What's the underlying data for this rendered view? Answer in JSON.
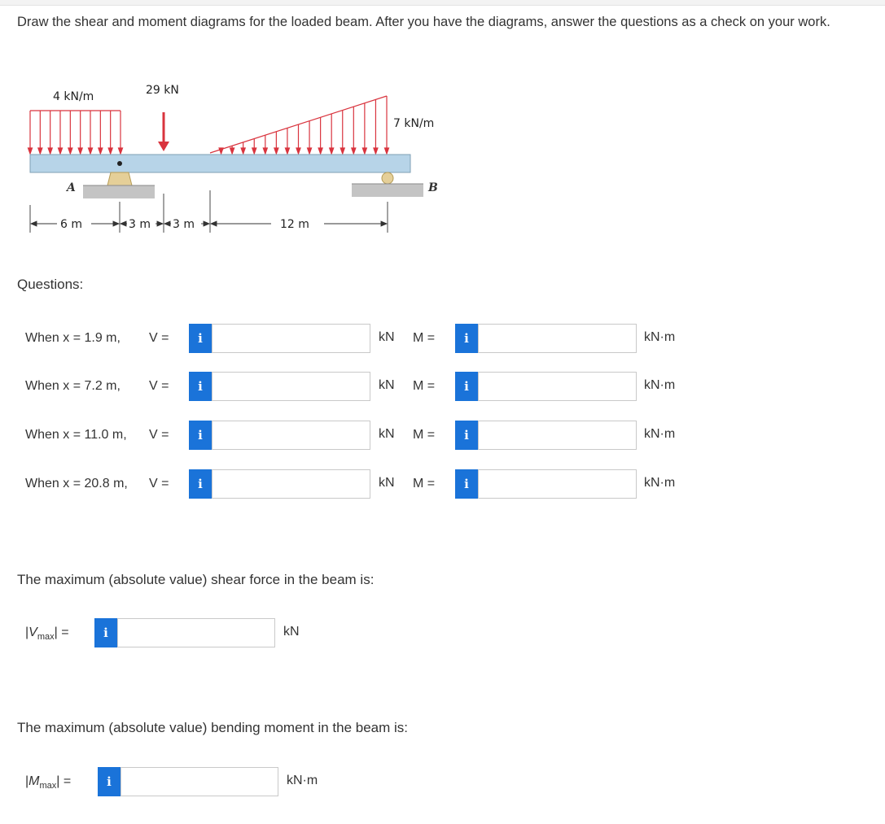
{
  "prompt": "Draw the shear and moment diagrams for the loaded beam. After you have the diagrams, answer the questions as a check on your work.",
  "figure": {
    "load_left": "4 kN/m",
    "load_point": "29 kN",
    "load_right": "7 kN/m",
    "support_a": "A",
    "support_b": "B",
    "dim_1": "6 m",
    "dim_2": "3 m",
    "dim_3": "3 m",
    "dim_4": "12 m",
    "colors": {
      "load": "#d9343e",
      "beam": "#b7d4e8",
      "support": "#e5cf98",
      "ground": "#bdbdbd"
    }
  },
  "questions_heading": "Questions:",
  "rows": [
    {
      "label": "When x = 1.9 m,",
      "v_label": "V =",
      "v_unit": "kN",
      "m_label": "M =",
      "m_unit": "kN·m",
      "v_value": "",
      "m_value": ""
    },
    {
      "label": "When x = 7.2 m,",
      "v_label": "V =",
      "v_unit": "kN",
      "m_label": "M =",
      "m_unit": "kN·m",
      "v_value": "",
      "m_value": ""
    },
    {
      "label": "When x = 11.0 m,",
      "v_label": "V =",
      "v_unit": "kN",
      "m_label": "M =",
      "m_unit": "kN·m",
      "v_value": "",
      "m_value": ""
    },
    {
      "label": "When x = 20.8 m,",
      "v_label": "V =",
      "v_unit": "kN",
      "m_label": "M =",
      "m_unit": "kN·m",
      "v_value": "",
      "m_value": ""
    }
  ],
  "info_glyph": "i",
  "vmax": {
    "sentence": "The maximum (absolute value) shear force in the beam is:",
    "symbol": "V",
    "subscript": "max",
    "equals": "| =",
    "unit": "kN",
    "value": ""
  },
  "mmax": {
    "sentence": "The maximum (absolute value) bending moment in the beam is:",
    "symbol": "M",
    "subscript": "max",
    "equals": "| =",
    "unit": "kN·m",
    "value": ""
  }
}
